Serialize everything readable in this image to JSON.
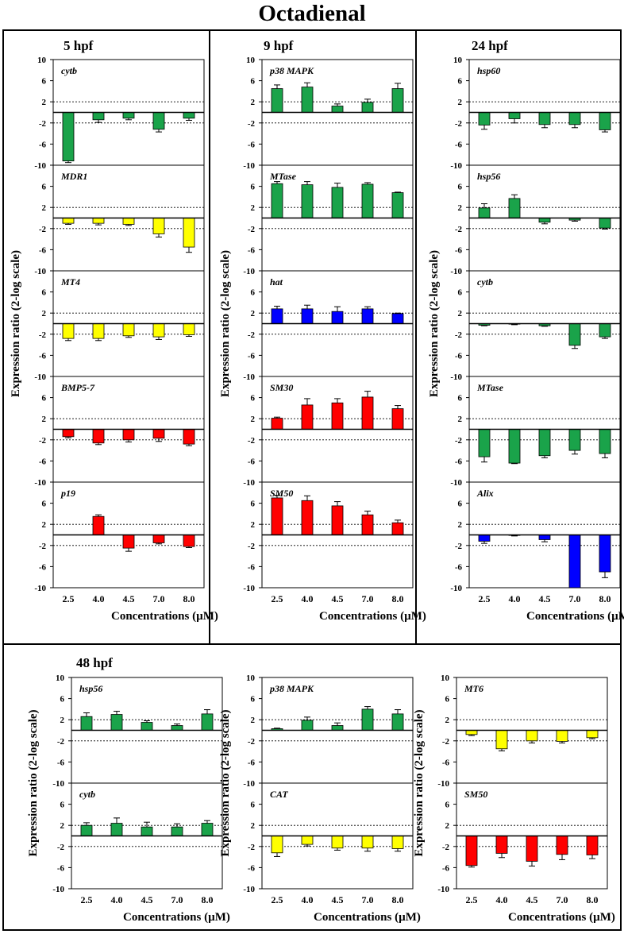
{
  "title": "Octadienal",
  "colors": {
    "green": "#1aa34a",
    "yellow": "#ffff00",
    "red": "#ff0000",
    "blue": "#0000ff"
  },
  "chart_data": {
    "type": "bar",
    "categories": [
      "2.5",
      "4.0",
      "4.5",
      "7.0",
      "8.0"
    ],
    "ylim": [
      -10,
      10
    ],
    "yticks": [
      "10",
      "6",
      "2",
      "-2",
      "-6",
      "-10"
    ],
    "threshold_lines": [
      2,
      -2
    ],
    "ylabel": "Expression ratio (2-log scale)",
    "xlabel": "Concentrations (µM)",
    "panels": [
      {
        "stage": "5 hpf",
        "genes": [
          {
            "name": "cytb",
            "color": "green",
            "values": [
              -9.2,
              -1.4,
              -1.1,
              -3.2,
              -1.1
            ],
            "errors": [
              0.3,
              0.5,
              0.3,
              0.5,
              0.4
            ]
          },
          {
            "name": "MDR1",
            "color": "yellow",
            "values": [
              -1.0,
              -1.0,
              -1.2,
              -3.0,
              -5.5
            ],
            "errors": [
              0.2,
              0.3,
              0.2,
              0.6,
              1.0
            ]
          },
          {
            "name": "MT4",
            "color": "yellow",
            "values": [
              -2.8,
              -2.8,
              -2.3,
              -2.5,
              -2.1
            ],
            "errors": [
              0.4,
              0.4,
              0.3,
              0.5,
              0.3
            ]
          },
          {
            "name": "BMP5-7",
            "color": "red",
            "values": [
              -1.4,
              -2.6,
              -2.0,
              -1.7,
              -2.8
            ],
            "errors": [
              0.2,
              0.3,
              0.4,
              0.6,
              0.3
            ]
          },
          {
            "name": "p19",
            "color": "red",
            "values": [
              0,
              3.5,
              -2.5,
              -1.5,
              -2.2
            ],
            "errors": [
              0,
              0.3,
              0.6,
              0.2,
              0.2
            ]
          }
        ]
      },
      {
        "stage": "9 hpf",
        "genes": [
          {
            "name": "p38 MAPK",
            "color": "green",
            "values": [
              4.5,
              4.8,
              1.2,
              1.9,
              4.5
            ],
            "errors": [
              0.7,
              0.8,
              0.4,
              0.6,
              1.0
            ]
          },
          {
            "name": "MTase",
            "color": "green",
            "values": [
              6.5,
              6.3,
              5.8,
              6.4,
              4.8
            ],
            "errors": [
              0.4,
              0.6,
              0.8,
              0.3,
              0.1
            ]
          },
          {
            "name": "hat",
            "color": "blue",
            "values": [
              2.8,
              2.8,
              2.3,
              2.8,
              1.9
            ],
            "errors": [
              0.5,
              0.7,
              0.9,
              0.4,
              0.1
            ]
          },
          {
            "name": "SM30",
            "color": "red",
            "values": [
              2.1,
              4.6,
              5.0,
              6.1,
              3.9
            ],
            "errors": [
              0.2,
              1.2,
              0.8,
              1.1,
              0.6
            ]
          },
          {
            "name": "SM50",
            "color": "red",
            "values": [
              7.0,
              6.5,
              5.5,
              3.8,
              2.3
            ],
            "errors": [
              0.5,
              0.9,
              0.8,
              0.7,
              0.5
            ]
          }
        ]
      },
      {
        "stage": "24 hpf",
        "genes": [
          {
            "name": "hsp60",
            "color": "green",
            "values": [
              -2.4,
              -1.2,
              -2.3,
              -2.3,
              -3.3
            ],
            "errors": [
              0.8,
              0.8,
              0.6,
              0.6,
              0.4
            ]
          },
          {
            "name": "hsp56",
            "color": "green",
            "values": [
              1.9,
              3.7,
              -0.8,
              -0.4,
              -1.9
            ],
            "errors": [
              0.8,
              0.7,
              0.3,
              0.2,
              0.2
            ]
          },
          {
            "name": "cytb",
            "color": "green",
            "values": [
              -0.3,
              -0.1,
              -0.4,
              -4.1,
              -2.5
            ],
            "errors": [
              0.1,
              0.1,
              0.1,
              0.6,
              0.3
            ]
          },
          {
            "name": "MTase",
            "color": "green",
            "values": [
              -5.2,
              -6.4,
              -5.0,
              -4.0,
              -4.6
            ],
            "errors": [
              1.0,
              0.1,
              0.4,
              0.7,
              0.8
            ]
          },
          {
            "name": "Alix",
            "color": "blue",
            "values": [
              -1.2,
              -0.1,
              -0.9,
              -10.0,
              -7.0
            ],
            "errors": [
              0.4,
              0.1,
              0.4,
              0,
              1.1
            ]
          }
        ]
      },
      {
        "stage": "48 hpf",
        "genes": [
          {
            "name": "hsp56",
            "color": "green",
            "values": [
              2.6,
              3.0,
              1.5,
              0.9,
              3.1
            ],
            "errors": [
              0.7,
              0.6,
              0.3,
              0.3,
              0.8
            ]
          },
          {
            "name": "cytb",
            "color": "green",
            "values": [
              2.0,
              2.4,
              1.7,
              1.7,
              2.4
            ],
            "errors": [
              0.5,
              1.0,
              0.9,
              0.6,
              0.5
            ]
          }
        ]
      },
      {
        "stage": "",
        "genes": [
          {
            "name": "p38 MAPK",
            "color": "green",
            "values": [
              0.3,
              1.9,
              0.9,
              4.0,
              3.1
            ],
            "errors": [
              0.1,
              0.6,
              0.5,
              0.5,
              0.8
            ]
          },
          {
            "name": "CAT",
            "color": "yellow",
            "values": [
              -3.2,
              -1.6,
              -2.3,
              -2.3,
              -2.4
            ],
            "errors": [
              0.7,
              0.3,
              0.4,
              0.6,
              0.5
            ]
          }
        ]
      },
      {
        "stage": "",
        "genes": [
          {
            "name": "MT6",
            "color": "yellow",
            "values": [
              -0.8,
              -3.5,
              -2.0,
              -2.1,
              -1.4
            ],
            "errors": [
              0.2,
              0.4,
              0.4,
              0.3,
              0.2
            ]
          },
          {
            "name": "SM50",
            "color": "red",
            "values": [
              -5.6,
              -3.3,
              -4.8,
              -3.5,
              -3.6
            ],
            "errors": [
              0.3,
              0.8,
              0.9,
              1.0,
              0.7
            ]
          }
        ]
      }
    ]
  }
}
